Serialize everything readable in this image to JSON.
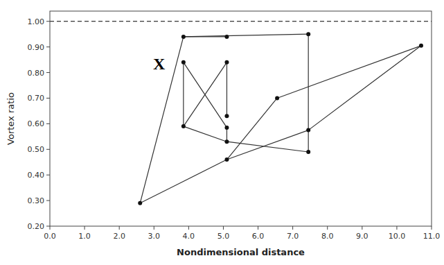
{
  "chart_data": {
    "type": "segments",
    "xlabel": "Nondimensional distance",
    "ylabel": "Vortex ratio",
    "xlim": [
      0.0,
      11.0
    ],
    "ylim": [
      0.2,
      1.04
    ],
    "xticks": [
      {
        "value": 0.0,
        "label": "0.0"
      },
      {
        "value": 1.0,
        "label": "1.0"
      },
      {
        "value": 2.0,
        "label": "2.0"
      },
      {
        "value": 3.0,
        "label": "3.0"
      },
      {
        "value": 4.0,
        "label": "4.0"
      },
      {
        "value": 5.0,
        "label": "5.0"
      },
      {
        "value": 6.0,
        "label": "6.0"
      },
      {
        "value": 7.0,
        "label": "7.0"
      },
      {
        "value": 8.0,
        "label": "8.0"
      },
      {
        "value": 9.0,
        "label": "9.0"
      },
      {
        "value": 10.0,
        "label": "10.0"
      },
      {
        "value": 11.0,
        "label": "11.0"
      }
    ],
    "yticks": [
      {
        "value": 0.2,
        "label": "0.20"
      },
      {
        "value": 0.3,
        "label": "0.30"
      },
      {
        "value": 0.4,
        "label": "0.40"
      },
      {
        "value": 0.5,
        "label": "0.50"
      },
      {
        "value": 0.6,
        "label": "0.60"
      },
      {
        "value": 0.7,
        "label": "0.70"
      },
      {
        "value": 0.8,
        "label": "0.80"
      },
      {
        "value": 0.9,
        "label": "0.90"
      },
      {
        "value": 1.0,
        "label": "1.00"
      }
    ],
    "grid": false,
    "color": "#333333",
    "segments": [
      {
        "x": [
          2.6,
          3.85
        ],
        "values": [
          0.29,
          0.94
        ]
      },
      {
        "x": [
          2.6,
          5.1
        ],
        "values": [
          0.29,
          0.46
        ]
      },
      {
        "x": [
          3.85,
          3.85
        ],
        "values": [
          0.84,
          0.59
        ]
      },
      {
        "x": [
          3.85,
          5.1
        ],
        "values": [
          0.84,
          0.585
        ]
      },
      {
        "x": [
          3.85,
          5.1
        ],
        "values": [
          0.59,
          0.84
        ]
      },
      {
        "x": [
          3.85,
          5.1
        ],
        "values": [
          0.59,
          0.53
        ]
      },
      {
        "x": [
          3.85,
          5.1
        ],
        "values": [
          0.94,
          0.94
        ]
      },
      {
        "x": [
          3.85,
          7.45
        ],
        "values": [
          0.94,
          0.95
        ]
      },
      {
        "x": [
          5.1,
          5.1
        ],
        "values": [
          0.84,
          0.63
        ]
      },
      {
        "x": [
          5.1,
          5.1
        ],
        "values": [
          0.585,
          0.53
        ]
      },
      {
        "x": [
          5.1,
          7.45
        ],
        "values": [
          0.53,
          0.49
        ]
      },
      {
        "x": [
          5.1,
          6.55
        ],
        "values": [
          0.46,
          0.7
        ]
      },
      {
        "x": [
          5.1,
          7.45
        ],
        "values": [
          0.46,
          0.575
        ]
      },
      {
        "x": [
          7.45,
          7.45
        ],
        "values": [
          0.95,
          0.49
        ]
      },
      {
        "x": [
          7.45,
          10.7
        ],
        "values": [
          0.575,
          0.905
        ]
      },
      {
        "x": [
          6.55,
          10.7
        ],
        "values": [
          0.7,
          0.905
        ]
      }
    ],
    "points": {
      "marker": "circle",
      "color": "#111111",
      "x": [
        2.6,
        3.85,
        3.85,
        3.85,
        5.1,
        5.1,
        5.1,
        5.1,
        5.1,
        5.1,
        6.55,
        7.45,
        7.45,
        7.45,
        10.7
      ],
      "values": [
        0.29,
        0.94,
        0.84,
        0.59,
        0.94,
        0.84,
        0.63,
        0.585,
        0.53,
        0.46,
        0.7,
        0.95,
        0.575,
        0.49,
        0.905
      ]
    },
    "hlines": [
      {
        "y": 1.0,
        "color": "#000000",
        "line_style": "dashed"
      }
    ],
    "annotations": [
      {
        "text": "X",
        "x": 3.15,
        "y": 0.835
      }
    ]
  }
}
